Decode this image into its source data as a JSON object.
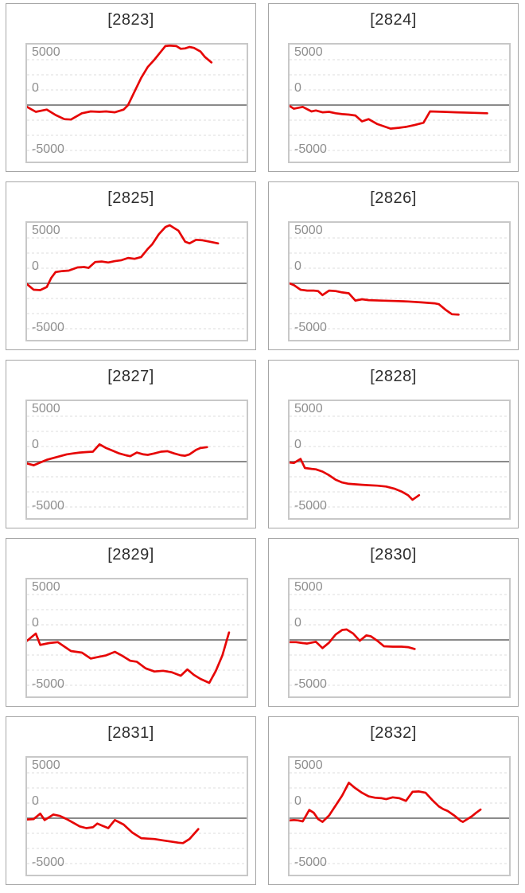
{
  "axis": {
    "tick_top": "5000",
    "tick_zero": "0",
    "tick_bottom": "-5000"
  },
  "colors": {
    "line": "#e60606",
    "zero_line": "#8a8a8a",
    "gridline": "#dcdcdc",
    "plot_border": "#c8c8c8",
    "cell_border": "#a6a6a6",
    "title_text": "#2d2d2d",
    "axis_text": "#8f8f8f",
    "background": "#ffffff"
  },
  "chart_data": [
    {
      "type": "line",
      "title": "[2823]",
      "ylabel": "",
      "xlabel": "",
      "ylim": [
        -6200,
        6700
      ],
      "yticks": [
        5000,
        0,
        -5000
      ],
      "grid_values": [
        5000,
        3333,
        1667,
        -1667,
        -3333,
        -5000
      ],
      "zero_value": 0,
      "legend": "none",
      "points": [
        [
          0,
          -200
        ],
        [
          0.04,
          -750
        ],
        [
          0.07,
          -600
        ],
        [
          0.09,
          -500
        ],
        [
          0.13,
          -1100
        ],
        [
          0.17,
          -1550
        ],
        [
          0.2,
          -1600
        ],
        [
          0.25,
          -900
        ],
        [
          0.29,
          -700
        ],
        [
          0.33,
          -750
        ],
        [
          0.36,
          -700
        ],
        [
          0.4,
          -800
        ],
        [
          0.44,
          -500
        ],
        [
          0.46,
          0
        ],
        [
          0.49,
          1500
        ],
        [
          0.52,
          3000
        ],
        [
          0.55,
          4200
        ],
        [
          0.58,
          5000
        ],
        [
          0.61,
          5900
        ],
        [
          0.63,
          6500
        ],
        [
          0.65,
          6550
        ],
        [
          0.68,
          6500
        ],
        [
          0.7,
          6200
        ],
        [
          0.72,
          6250
        ],
        [
          0.74,
          6400
        ],
        [
          0.76,
          6300
        ],
        [
          0.79,
          5900
        ],
        [
          0.81,
          5300
        ],
        [
          0.84,
          4700
        ]
      ]
    },
    {
      "type": "line",
      "title": "[2824]",
      "ylabel": "",
      "xlabel": "",
      "ylim": [
        -6200,
        6700
      ],
      "yticks": [
        5000,
        0,
        -5000
      ],
      "grid_values": [
        5000,
        3333,
        1667,
        -1667,
        -3333,
        -5000
      ],
      "zero_value": 0,
      "legend": "none",
      "points": [
        [
          0,
          -100
        ],
        [
          0.02,
          -400
        ],
        [
          0.04,
          -300
        ],
        [
          0.06,
          -200
        ],
        [
          0.1,
          -700
        ],
        [
          0.12,
          -600
        ],
        [
          0.15,
          -800
        ],
        [
          0.18,
          -750
        ],
        [
          0.21,
          -900
        ],
        [
          0.24,
          -1000
        ],
        [
          0.27,
          -1050
        ],
        [
          0.3,
          -1150
        ],
        [
          0.33,
          -1800
        ],
        [
          0.36,
          -1550
        ],
        [
          0.4,
          -2100
        ],
        [
          0.46,
          -2600
        ],
        [
          0.5,
          -2500
        ],
        [
          0.53,
          -2400
        ],
        [
          0.57,
          -2200
        ],
        [
          0.61,
          -1950
        ],
        [
          0.64,
          -700
        ],
        [
          0.7,
          -750
        ],
        [
          0.76,
          -800
        ],
        [
          0.83,
          -850
        ],
        [
          0.9,
          -900
        ]
      ]
    },
    {
      "type": "line",
      "title": "[2825]",
      "ylabel": "",
      "xlabel": "",
      "ylim": [
        -6200,
        6700
      ],
      "yticks": [
        5000,
        0,
        -5000
      ],
      "grid_values": [
        5000,
        3333,
        1667,
        -1667,
        -3333,
        -5000
      ],
      "zero_value": 0,
      "legend": "none",
      "points": [
        [
          0,
          -100
        ],
        [
          0.03,
          -700
        ],
        [
          0.06,
          -750
        ],
        [
          0.09,
          -400
        ],
        [
          0.11,
          600
        ],
        [
          0.13,
          1250
        ],
        [
          0.16,
          1350
        ],
        [
          0.19,
          1400
        ],
        [
          0.23,
          1750
        ],
        [
          0.26,
          1800
        ],
        [
          0.28,
          1700
        ],
        [
          0.31,
          2350
        ],
        [
          0.34,
          2400
        ],
        [
          0.37,
          2300
        ],
        [
          0.4,
          2450
        ],
        [
          0.43,
          2550
        ],
        [
          0.46,
          2800
        ],
        [
          0.49,
          2700
        ],
        [
          0.52,
          2900
        ],
        [
          0.55,
          3800
        ],
        [
          0.57,
          4300
        ],
        [
          0.6,
          5400
        ],
        [
          0.63,
          6200
        ],
        [
          0.65,
          6400
        ],
        [
          0.67,
          6100
        ],
        [
          0.69,
          5800
        ],
        [
          0.72,
          4600
        ],
        [
          0.74,
          4400
        ],
        [
          0.77,
          4800
        ],
        [
          0.8,
          4750
        ],
        [
          0.83,
          4600
        ],
        [
          0.85,
          4500
        ],
        [
          0.87,
          4400
        ]
      ]
    },
    {
      "type": "line",
      "title": "[2826]",
      "ylabel": "",
      "xlabel": "",
      "ylim": [
        -6200,
        6700
      ],
      "yticks": [
        5000,
        0,
        -5000
      ],
      "grid_values": [
        5000,
        3333,
        1667,
        -1667,
        -3333,
        -5000
      ],
      "zero_value": 0,
      "legend": "none",
      "points": [
        [
          0,
          0
        ],
        [
          0.02,
          -200
        ],
        [
          0.05,
          -700
        ],
        [
          0.08,
          -800
        ],
        [
          0.11,
          -800
        ],
        [
          0.13,
          -850
        ],
        [
          0.15,
          -1300
        ],
        [
          0.18,
          -800
        ],
        [
          0.21,
          -850
        ],
        [
          0.24,
          -1000
        ],
        [
          0.27,
          -1100
        ],
        [
          0.3,
          -1900
        ],
        [
          0.33,
          -1750
        ],
        [
          0.36,
          -1850
        ],
        [
          0.42,
          -1900
        ],
        [
          0.48,
          -1950
        ],
        [
          0.54,
          -2000
        ],
        [
          0.6,
          -2100
        ],
        [
          0.66,
          -2200
        ],
        [
          0.68,
          -2300
        ],
        [
          0.71,
          -2900
        ],
        [
          0.74,
          -3400
        ],
        [
          0.77,
          -3450
        ]
      ]
    },
    {
      "type": "line",
      "title": "[2827]",
      "ylabel": "",
      "xlabel": "",
      "ylim": [
        -6200,
        6700
      ],
      "yticks": [
        5000,
        0,
        -5000
      ],
      "grid_values": [
        5000,
        3333,
        1667,
        -1667,
        -3333,
        -5000
      ],
      "zero_value": 0,
      "legend": "none",
      "points": [
        [
          0,
          -200
        ],
        [
          0.03,
          -400
        ],
        [
          0.06,
          -100
        ],
        [
          0.09,
          200
        ],
        [
          0.12,
          400
        ],
        [
          0.15,
          600
        ],
        [
          0.18,
          800
        ],
        [
          0.21,
          900
        ],
        [
          0.24,
          1000
        ],
        [
          0.27,
          1050
        ],
        [
          0.3,
          1100
        ],
        [
          0.33,
          1900
        ],
        [
          0.36,
          1500
        ],
        [
          0.39,
          1200
        ],
        [
          0.42,
          900
        ],
        [
          0.45,
          700
        ],
        [
          0.47,
          600
        ],
        [
          0.5,
          1000
        ],
        [
          0.53,
          800
        ],
        [
          0.55,
          750
        ],
        [
          0.58,
          900
        ],
        [
          0.61,
          1100
        ],
        [
          0.64,
          1150
        ],
        [
          0.67,
          900
        ],
        [
          0.7,
          700
        ],
        [
          0.72,
          650
        ],
        [
          0.74,
          800
        ],
        [
          0.77,
          1300
        ],
        [
          0.79,
          1500
        ],
        [
          0.82,
          1600
        ]
      ]
    },
    {
      "type": "line",
      "title": "[2828]",
      "ylabel": "",
      "xlabel": "",
      "ylim": [
        -6200,
        6700
      ],
      "yticks": [
        5000,
        0,
        -5000
      ],
      "grid_values": [
        5000,
        3333,
        1667,
        -1667,
        -3333,
        -5000
      ],
      "zero_value": 0,
      "legend": "none",
      "points": [
        [
          0,
          -100
        ],
        [
          0.02,
          -150
        ],
        [
          0.05,
          300
        ],
        [
          0.07,
          -700
        ],
        [
          0.1,
          -800
        ],
        [
          0.12,
          -850
        ],
        [
          0.15,
          -1100
        ],
        [
          0.18,
          -1500
        ],
        [
          0.21,
          -2000
        ],
        [
          0.24,
          -2300
        ],
        [
          0.27,
          -2450
        ],
        [
          0.3,
          -2500
        ],
        [
          0.33,
          -2550
        ],
        [
          0.36,
          -2600
        ],
        [
          0.4,
          -2650
        ],
        [
          0.44,
          -2750
        ],
        [
          0.48,
          -3000
        ],
        [
          0.51,
          -3300
        ],
        [
          0.54,
          -3700
        ],
        [
          0.56,
          -4200
        ],
        [
          0.59,
          -3700
        ]
      ]
    },
    {
      "type": "line",
      "title": "[2829]",
      "ylabel": "",
      "xlabel": "",
      "ylim": [
        -6200,
        6700
      ],
      "yticks": [
        5000,
        0,
        -5000
      ],
      "grid_values": [
        5000,
        3333,
        1667,
        -1667,
        -3333,
        -5000
      ],
      "zero_value": 0,
      "legend": "none",
      "points": [
        [
          0,
          -100
        ],
        [
          0.04,
          700
        ],
        [
          0.06,
          -550
        ],
        [
          0.1,
          -350
        ],
        [
          0.14,
          -250
        ],
        [
          0.2,
          -1230
        ],
        [
          0.25,
          -1400
        ],
        [
          0.29,
          -2050
        ],
        [
          0.32,
          -1900
        ],
        [
          0.36,
          -1700
        ],
        [
          0.4,
          -1320
        ],
        [
          0.43,
          -1700
        ],
        [
          0.47,
          -2300
        ],
        [
          0.5,
          -2400
        ],
        [
          0.54,
          -3130
        ],
        [
          0.58,
          -3480
        ],
        [
          0.62,
          -3400
        ],
        [
          0.66,
          -3570
        ],
        [
          0.7,
          -3950
        ],
        [
          0.73,
          -3250
        ],
        [
          0.76,
          -3860
        ],
        [
          0.79,
          -4300
        ],
        [
          0.83,
          -4740
        ],
        [
          0.86,
          -3400
        ],
        [
          0.89,
          -1700
        ],
        [
          0.92,
          820
        ]
      ]
    },
    {
      "type": "line",
      "title": "[2830]",
      "ylabel": "",
      "xlabel": "",
      "ylim": [
        -6200,
        6700
      ],
      "yticks": [
        5000,
        0,
        -5000
      ],
      "grid_values": [
        5000,
        3333,
        1667,
        -1667,
        -3333,
        -5000
      ],
      "zero_value": 0,
      "legend": "none",
      "points": [
        [
          0,
          -250
        ],
        [
          0.03,
          -250
        ],
        [
          0.06,
          -350
        ],
        [
          0.08,
          -400
        ],
        [
          0.1,
          -300
        ],
        [
          0.12,
          -200
        ],
        [
          0.15,
          -900
        ],
        [
          0.18,
          -300
        ],
        [
          0.21,
          600
        ],
        [
          0.24,
          1100
        ],
        [
          0.26,
          1150
        ],
        [
          0.29,
          700
        ],
        [
          0.32,
          -100
        ],
        [
          0.35,
          500
        ],
        [
          0.37,
          400
        ],
        [
          0.4,
          -100
        ],
        [
          0.43,
          -700
        ],
        [
          0.47,
          -750
        ],
        [
          0.51,
          -750
        ],
        [
          0.54,
          -800
        ],
        [
          0.57,
          -1000
        ]
      ]
    },
    {
      "type": "line",
      "title": "[2831]",
      "ylabel": "",
      "xlabel": "",
      "ylim": [
        -6200,
        6700
      ],
      "yticks": [
        5000,
        0,
        -5000
      ],
      "grid_values": [
        5000,
        3333,
        1667,
        -1667,
        -3333,
        -5000
      ],
      "zero_value": 0,
      "legend": "none",
      "points": [
        [
          0,
          -150
        ],
        [
          0.03,
          -100
        ],
        [
          0.06,
          500
        ],
        [
          0.08,
          -200
        ],
        [
          0.1,
          100
        ],
        [
          0.12,
          400
        ],
        [
          0.15,
          250
        ],
        [
          0.18,
          -100
        ],
        [
          0.21,
          -500
        ],
        [
          0.24,
          -900
        ],
        [
          0.27,
          -1100
        ],
        [
          0.3,
          -1000
        ],
        [
          0.32,
          -600
        ],
        [
          0.35,
          -900
        ],
        [
          0.37,
          -1100
        ],
        [
          0.4,
          -200
        ],
        [
          0.44,
          -700
        ],
        [
          0.48,
          -1600
        ],
        [
          0.52,
          -2200
        ],
        [
          0.55,
          -2250
        ],
        [
          0.58,
          -2300
        ],
        [
          0.62,
          -2450
        ],
        [
          0.66,
          -2600
        ],
        [
          0.69,
          -2700
        ],
        [
          0.71,
          -2750
        ],
        [
          0.74,
          -2300
        ],
        [
          0.78,
          -1200
        ]
      ]
    },
    {
      "type": "line",
      "title": "[2832]",
      "ylabel": "",
      "xlabel": "",
      "ylim": [
        -6200,
        6700
      ],
      "yticks": [
        5000,
        0,
        -5000
      ],
      "grid_values": [
        5000,
        3333,
        1667,
        -1667,
        -3333,
        -5000
      ],
      "zero_value": 0,
      "legend": "none",
      "points": [
        [
          0,
          -250
        ],
        [
          0.02,
          -200
        ],
        [
          0.04,
          -250
        ],
        [
          0.06,
          -350
        ],
        [
          0.09,
          900
        ],
        [
          0.11,
          600
        ],
        [
          0.13,
          -100
        ],
        [
          0.15,
          -400
        ],
        [
          0.18,
          300
        ],
        [
          0.21,
          1400
        ],
        [
          0.24,
          2500
        ],
        [
          0.27,
          3900
        ],
        [
          0.3,
          3300
        ],
        [
          0.33,
          2800
        ],
        [
          0.36,
          2400
        ],
        [
          0.39,
          2250
        ],
        [
          0.42,
          2200
        ],
        [
          0.44,
          2100
        ],
        [
          0.47,
          2300
        ],
        [
          0.5,
          2200
        ],
        [
          0.53,
          1900
        ],
        [
          0.56,
          2900
        ],
        [
          0.59,
          2950
        ],
        [
          0.62,
          2800
        ],
        [
          0.65,
          2000
        ],
        [
          0.68,
          1300
        ],
        [
          0.7,
          1000
        ],
        [
          0.72,
          800
        ],
        [
          0.75,
          300
        ],
        [
          0.78,
          -300
        ],
        [
          0.79,
          -400
        ],
        [
          0.83,
          200
        ],
        [
          0.85,
          600
        ],
        [
          0.87,
          950
        ]
      ]
    }
  ]
}
